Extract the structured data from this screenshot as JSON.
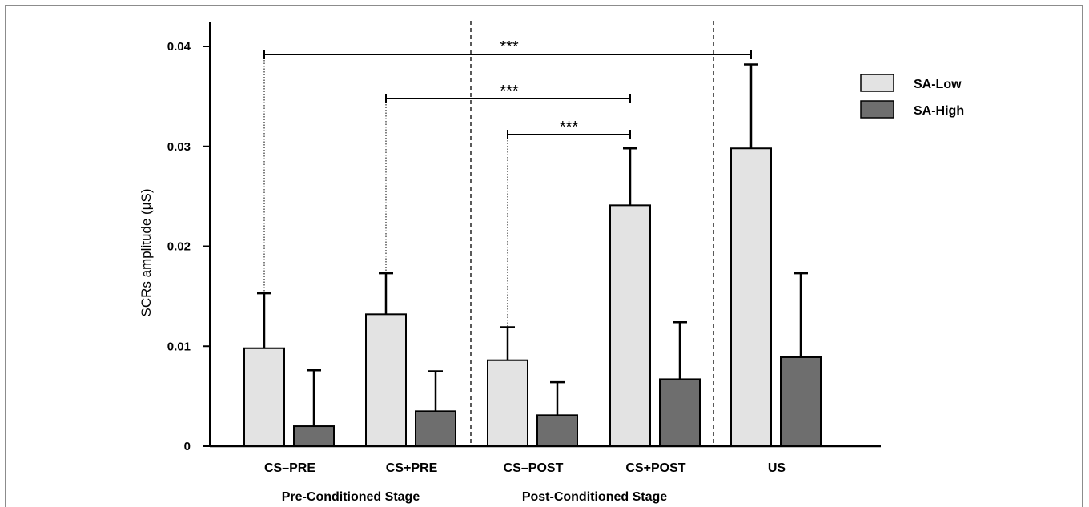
{
  "chart_data": {
    "type": "bar",
    "ylabel": "SCRs amplitude (μS)",
    "ylim": [
      0,
      0.04
    ],
    "yticks": [
      0,
      0.01,
      0.02,
      0.03,
      0.04
    ],
    "ytick_labels": [
      "0",
      "0.01",
      "0.02",
      "0.03",
      "0.04"
    ],
    "categories": [
      "CS–PRE",
      "CS+PRE",
      "CS–POST",
      "CS+POST",
      "US"
    ],
    "group_labels": [
      {
        "label": "Pre-Conditioned Stage",
        "categories": [
          "CS–PRE",
          "CS+PRE"
        ]
      },
      {
        "label": "Post-Conditioned Stage",
        "categories": [
          "CS–POST",
          "CS+POST"
        ]
      }
    ],
    "series": [
      {
        "name": "SA-Low",
        "color": "#e3e3e3",
        "values": [
          0.0098,
          0.0132,
          0.0086,
          0.0241,
          0.0298
        ],
        "error": [
          0.0055,
          0.0041,
          0.0033,
          0.0057,
          0.0084
        ]
      },
      {
        "name": "SA-High",
        "color": "#6e6e6e",
        "values": [
          0.002,
          0.0035,
          0.0031,
          0.0067,
          0.0089
        ],
        "error": [
          0.0056,
          0.004,
          0.0033,
          0.0057,
          0.0084
        ]
      }
    ],
    "significance": [
      {
        "from": "CS–PRE",
        "to": "US",
        "label": "***"
      },
      {
        "from": "CS+PRE",
        "to": "CS+POST",
        "label": "***"
      },
      {
        "from": "CS–POST",
        "to": "CS+POST",
        "label": "***"
      }
    ],
    "legend": {
      "placement": "top-right"
    },
    "grid": false
  }
}
